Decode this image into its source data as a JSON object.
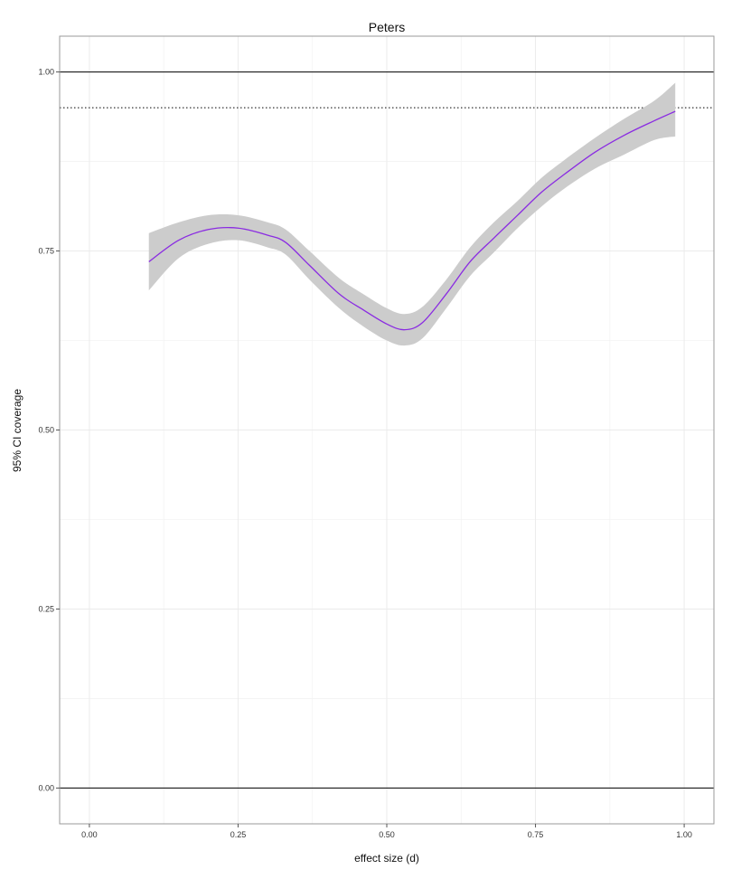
{
  "chart_data": {
    "type": "line",
    "title": "Peters",
    "xlabel": "effect size (d)",
    "ylabel": "95% CI coverage",
    "xlim": [
      -0.05,
      1.05
    ],
    "ylim": [
      -0.05,
      1.05
    ],
    "x_ticks": [
      0,
      0.25,
      0.5,
      0.75,
      1
    ],
    "x_tick_labels": [
      "0.00",
      "0.25",
      "0.50",
      "0.75",
      "1.00"
    ],
    "y_ticks": [
      0,
      0.25,
      0.5,
      0.75,
      1
    ],
    "y_tick_labels": [
      "0.00",
      "0.25",
      "0.50",
      "0.75",
      "1.00"
    ],
    "grid": true,
    "colors": {
      "line": "#8a2be2",
      "band": "#cccccc",
      "grid": "#ebebeb",
      "border": "#999999",
      "reference": "#000000"
    },
    "reference_lines": [
      {
        "y": 1.0,
        "style": "solid"
      },
      {
        "y": 0.95,
        "style": "dotted"
      },
      {
        "y": 0.0,
        "style": "solid"
      }
    ],
    "series": [
      {
        "x": [
          0.1,
          0.15,
          0.2,
          0.25,
          0.3,
          0.33,
          0.37,
          0.42,
          0.46,
          0.5,
          0.53,
          0.56,
          0.6,
          0.64,
          0.68,
          0.72,
          0.76,
          0.8,
          0.85,
          0.9,
          0.95,
          0.985
        ],
        "y": [
          0.735,
          0.765,
          0.78,
          0.782,
          0.772,
          0.762,
          0.73,
          0.69,
          0.668,
          0.648,
          0.64,
          0.65,
          0.69,
          0.735,
          0.768,
          0.8,
          0.832,
          0.858,
          0.888,
          0.912,
          0.932,
          0.945
        ],
        "lower": [
          0.695,
          0.74,
          0.76,
          0.765,
          0.755,
          0.745,
          0.71,
          0.67,
          0.645,
          0.625,
          0.618,
          0.628,
          0.67,
          0.715,
          0.748,
          0.782,
          0.812,
          0.838,
          0.865,
          0.885,
          0.905,
          0.91
        ],
        "upper": [
          0.775,
          0.79,
          0.8,
          0.8,
          0.79,
          0.78,
          0.75,
          0.712,
          0.69,
          0.67,
          0.662,
          0.672,
          0.71,
          0.755,
          0.79,
          0.82,
          0.852,
          0.878,
          0.908,
          0.935,
          0.96,
          0.985
        ]
      }
    ]
  }
}
